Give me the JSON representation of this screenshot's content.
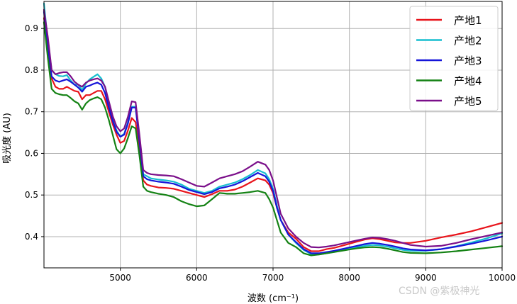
{
  "chart_data": {
    "type": "line",
    "title": "",
    "xlabel": "波数 (cm⁻¹)",
    "ylabel": "吸光度 (AU)",
    "xlim": [
      4000,
      10000
    ],
    "ylim": [
      0.325,
      0.965
    ],
    "xticks": [
      5000,
      6000,
      7000,
      8000,
      9000,
      10000
    ],
    "yticks": [
      0.4,
      0.5,
      0.6,
      0.7,
      0.8,
      0.9
    ],
    "grid": true,
    "legend_position": "top-right",
    "series": [
      {
        "name": "产地1",
        "color": "#e8141b",
        "x": [
          4000,
          4050,
          4100,
          4150,
          4200,
          4250,
          4300,
          4350,
          4400,
          4450,
          4500,
          4550,
          4600,
          4650,
          4700,
          4750,
          4800,
          4850,
          4900,
          4950,
          5000,
          5050,
          5100,
          5150,
          5200,
          5250,
          5300,
          5350,
          5400,
          5500,
          5600,
          5700,
          5800,
          5900,
          6000,
          6100,
          6200,
          6300,
          6400,
          6500,
          6600,
          6700,
          6800,
          6900,
          6950,
          7000,
          7050,
          7100,
          7200,
          7300,
          7400,
          7500,
          7600,
          7700,
          7800,
          7900,
          8000,
          8100,
          8200,
          8300,
          8400,
          8500,
          8600,
          8700,
          8800,
          9000,
          9200,
          9400,
          9600,
          9800,
          10000
        ],
        "y": [
          0.925,
          0.86,
          0.78,
          0.76,
          0.755,
          0.755,
          0.76,
          0.755,
          0.75,
          0.748,
          0.73,
          0.74,
          0.74,
          0.745,
          0.75,
          0.75,
          0.73,
          0.7,
          0.67,
          0.645,
          0.625,
          0.63,
          0.655,
          0.685,
          0.675,
          0.61,
          0.535,
          0.525,
          0.522,
          0.518,
          0.517,
          0.515,
          0.51,
          0.505,
          0.5,
          0.495,
          0.502,
          0.51,
          0.51,
          0.513,
          0.52,
          0.53,
          0.54,
          0.535,
          0.525,
          0.505,
          0.47,
          0.44,
          0.41,
          0.395,
          0.375,
          0.365,
          0.365,
          0.37,
          0.373,
          0.378,
          0.383,
          0.388,
          0.393,
          0.396,
          0.394,
          0.39,
          0.386,
          0.385,
          0.385,
          0.39,
          0.398,
          0.405,
          0.413,
          0.423,
          0.433
        ]
      },
      {
        "name": "产地2",
        "color": "#17becf",
        "x": [
          4000,
          4050,
          4100,
          4150,
          4200,
          4250,
          4300,
          4350,
          4400,
          4450,
          4500,
          4550,
          4600,
          4650,
          4700,
          4750,
          4800,
          4850,
          4900,
          4950,
          5000,
          5050,
          5100,
          5150,
          5200,
          5250,
          5300,
          5350,
          5400,
          5500,
          5600,
          5700,
          5800,
          5900,
          6000,
          6100,
          6200,
          6300,
          6400,
          6500,
          6600,
          6700,
          6800,
          6900,
          6950,
          7000,
          7050,
          7100,
          7200,
          7300,
          7400,
          7500,
          7600,
          7700,
          7800,
          7900,
          8000,
          8100,
          8200,
          8300,
          8400,
          8500,
          8600,
          8700,
          8800,
          9000,
          9200,
          9400,
          9600,
          9800,
          10000
        ],
        "y": [
          0.96,
          0.87,
          0.8,
          0.79,
          0.786,
          0.785,
          0.788,
          0.775,
          0.765,
          0.765,
          0.752,
          0.768,
          0.778,
          0.784,
          0.79,
          0.78,
          0.76,
          0.72,
          0.68,
          0.655,
          0.64,
          0.647,
          0.675,
          0.712,
          0.712,
          0.635,
          0.55,
          0.545,
          0.54,
          0.537,
          0.535,
          0.532,
          0.525,
          0.515,
          0.51,
          0.505,
          0.51,
          0.52,
          0.525,
          0.53,
          0.538,
          0.548,
          0.56,
          0.552,
          0.538,
          0.515,
          0.475,
          0.44,
          0.405,
          0.385,
          0.368,
          0.358,
          0.357,
          0.36,
          0.363,
          0.367,
          0.371,
          0.375,
          0.378,
          0.38,
          0.379,
          0.376,
          0.372,
          0.368,
          0.366,
          0.366,
          0.37,
          0.377,
          0.386,
          0.396,
          0.408
        ]
      },
      {
        "name": "产地3",
        "color": "#1515d9",
        "x": [
          4000,
          4050,
          4100,
          4150,
          4200,
          4250,
          4300,
          4350,
          4400,
          4450,
          4500,
          4550,
          4600,
          4650,
          4700,
          4750,
          4800,
          4850,
          4900,
          4950,
          5000,
          5050,
          5100,
          5150,
          5200,
          5250,
          5300,
          5350,
          5400,
          5500,
          5600,
          5700,
          5800,
          5900,
          6000,
          6100,
          6200,
          6300,
          6400,
          6500,
          6600,
          6700,
          6800,
          6900,
          6950,
          7000,
          7050,
          7100,
          7200,
          7300,
          7400,
          7500,
          7600,
          7700,
          7800,
          7900,
          8000,
          8100,
          8200,
          8300,
          8400,
          8500,
          8600,
          8700,
          8800,
          9000,
          9200,
          9400,
          9600,
          9800,
          10000
        ],
        "y": [
          0.94,
          0.86,
          0.785,
          0.775,
          0.772,
          0.775,
          0.778,
          0.772,
          0.765,
          0.758,
          0.748,
          0.76,
          0.763,
          0.767,
          0.77,
          0.765,
          0.745,
          0.71,
          0.678,
          0.652,
          0.64,
          0.645,
          0.672,
          0.71,
          0.71,
          0.63,
          0.545,
          0.538,
          0.535,
          0.532,
          0.53,
          0.527,
          0.52,
          0.512,
          0.507,
          0.502,
          0.507,
          0.516,
          0.52,
          0.525,
          0.533,
          0.543,
          0.553,
          0.545,
          0.532,
          0.51,
          0.47,
          0.44,
          0.405,
          0.387,
          0.37,
          0.36,
          0.36,
          0.363,
          0.366,
          0.37,
          0.374,
          0.378,
          0.382,
          0.385,
          0.383,
          0.38,
          0.376,
          0.372,
          0.369,
          0.367,
          0.37,
          0.376,
          0.383,
          0.391,
          0.4
        ]
      },
      {
        "name": "产地4",
        "color": "#148214",
        "x": [
          4000,
          4050,
          4100,
          4150,
          4200,
          4250,
          4300,
          4350,
          4400,
          4450,
          4500,
          4550,
          4600,
          4650,
          4700,
          4750,
          4800,
          4850,
          4900,
          4950,
          5000,
          5050,
          5100,
          5150,
          5200,
          5250,
          5300,
          5350,
          5400,
          5500,
          5600,
          5700,
          5800,
          5900,
          6000,
          6100,
          6200,
          6300,
          6400,
          6500,
          6600,
          6700,
          6800,
          6900,
          6950,
          7000,
          7050,
          7100,
          7200,
          7300,
          7400,
          7500,
          7600,
          7700,
          7800,
          7900,
          8000,
          8100,
          8200,
          8300,
          8400,
          8500,
          8600,
          8700,
          8800,
          9000,
          9200,
          9400,
          9600,
          9800,
          10000
        ],
        "y": [
          0.915,
          0.83,
          0.755,
          0.745,
          0.742,
          0.74,
          0.74,
          0.733,
          0.725,
          0.72,
          0.705,
          0.72,
          0.728,
          0.732,
          0.735,
          0.73,
          0.71,
          0.68,
          0.645,
          0.61,
          0.6,
          0.612,
          0.637,
          0.665,
          0.66,
          0.595,
          0.52,
          0.51,
          0.507,
          0.503,
          0.5,
          0.495,
          0.485,
          0.478,
          0.473,
          0.475,
          0.49,
          0.505,
          0.503,
          0.503,
          0.505,
          0.507,
          0.51,
          0.505,
          0.49,
          0.47,
          0.44,
          0.41,
          0.385,
          0.375,
          0.36,
          0.355,
          0.357,
          0.36,
          0.363,
          0.366,
          0.369,
          0.372,
          0.374,
          0.375,
          0.374,
          0.371,
          0.367,
          0.363,
          0.361,
          0.36,
          0.362,
          0.365,
          0.369,
          0.373,
          0.377
        ]
      },
      {
        "name": "产地5",
        "color": "#7b0f8a",
        "x": [
          4000,
          4050,
          4100,
          4150,
          4200,
          4250,
          4300,
          4350,
          4400,
          4450,
          4500,
          4550,
          4600,
          4650,
          4700,
          4750,
          4800,
          4850,
          4900,
          4950,
          5000,
          5050,
          5100,
          5150,
          5200,
          5250,
          5300,
          5350,
          5400,
          5500,
          5600,
          5700,
          5800,
          5900,
          6000,
          6100,
          6200,
          6300,
          6400,
          6500,
          6600,
          6700,
          6800,
          6900,
          6950,
          7000,
          7050,
          7100,
          7200,
          7300,
          7400,
          7500,
          7600,
          7700,
          7800,
          7900,
          8000,
          8100,
          8200,
          8300,
          8400,
          8500,
          8600,
          8700,
          8800,
          9000,
          9200,
          9400,
          9600,
          9800,
          10000
        ],
        "y": [
          0.945,
          0.88,
          0.8,
          0.79,
          0.793,
          0.795,
          0.795,
          0.785,
          0.772,
          0.765,
          0.76,
          0.77,
          0.775,
          0.778,
          0.78,
          0.775,
          0.76,
          0.725,
          0.69,
          0.665,
          0.653,
          0.66,
          0.688,
          0.725,
          0.723,
          0.645,
          0.56,
          0.553,
          0.55,
          0.548,
          0.547,
          0.545,
          0.538,
          0.53,
          0.522,
          0.52,
          0.53,
          0.54,
          0.545,
          0.55,
          0.557,
          0.568,
          0.58,
          0.573,
          0.56,
          0.535,
          0.495,
          0.455,
          0.42,
          0.4,
          0.385,
          0.375,
          0.374,
          0.376,
          0.379,
          0.383,
          0.387,
          0.391,
          0.395,
          0.398,
          0.397,
          0.394,
          0.39,
          0.385,
          0.38,
          0.376,
          0.378,
          0.385,
          0.394,
          0.402,
          0.41
        ]
      }
    ]
  },
  "watermark": "CSDN @紫极神光"
}
